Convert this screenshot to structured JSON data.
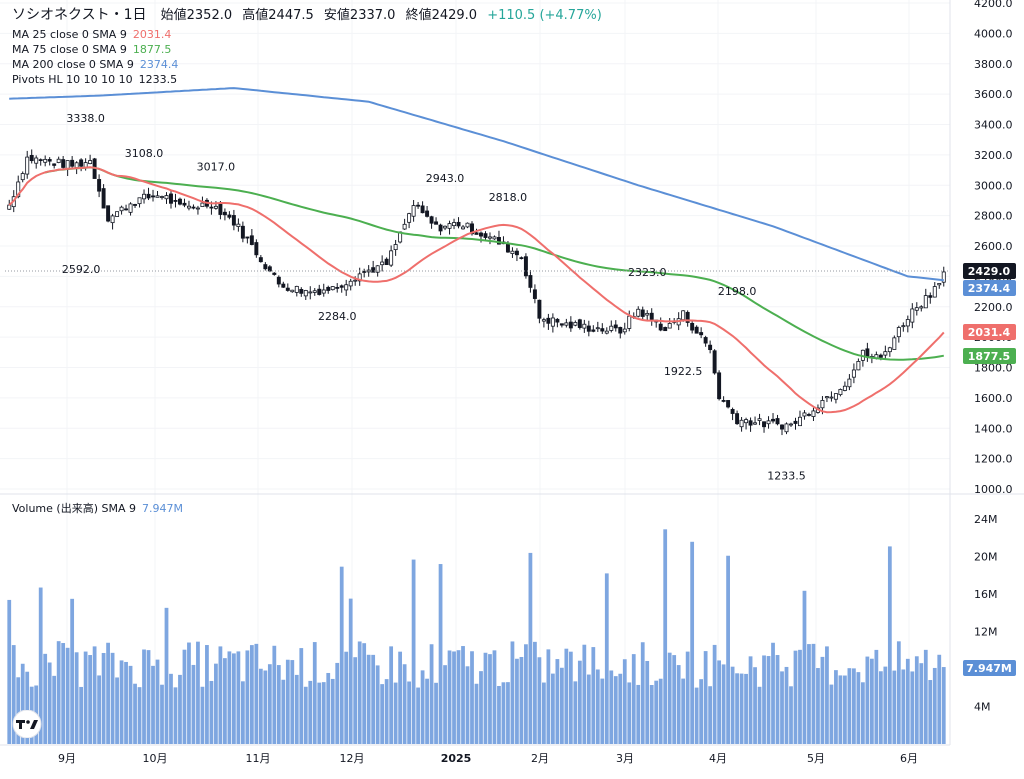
{
  "header": {
    "symbol": "ソシオネクスト・1日",
    "open": "始値2352.0",
    "high": "高値2447.5",
    "low": "安値2337.0",
    "close": "終値2429.0",
    "change": "+110.5 (+4.77%)"
  },
  "indicators": [
    {
      "label": "MA 25 close 0 SMA 9",
      "value": "2031.4",
      "color": "#ef6f6c"
    },
    {
      "label": "MA 75 close 0 SMA 9",
      "value": "1877.5",
      "color": "#4caf50"
    },
    {
      "label": "MA 200 close 0 SMA 9",
      "value": "2374.4",
      "color": "#5b8fd6"
    },
    {
      "label": "Pivots HL 10 10 10 10",
      "value": "1233.5",
      "color": "#131722"
    }
  ],
  "volume_legend": {
    "label": "Volume (出来高) SMA 9",
    "value": "7.947M",
    "color": "#5b8fd6"
  },
  "price_axis": {
    "ticks": [
      "4200.0",
      "4000.0",
      "3800.0",
      "3600.0",
      "3400.0",
      "3200.0",
      "3000.0",
      "2800.0",
      "2600.0",
      "2400.0",
      "2200.0",
      "2000.0",
      "1800.0",
      "1600.0",
      "1400.0",
      "1200.0",
      "1000.0"
    ]
  },
  "volume_axis": {
    "ticks": [
      "24M",
      "20M",
      "16M",
      "12M",
      "4M"
    ]
  },
  "time_axis": {
    "labels": [
      "9月",
      "10月",
      "11月",
      "12月",
      "2025",
      "2月",
      "3月",
      "4月",
      "5月",
      "6月"
    ]
  },
  "price_tags": [
    {
      "text": "2429.0",
      "color": "#131722"
    },
    {
      "text": "2374.4",
      "color": "#5b8fd6"
    },
    {
      "text": "2031.4",
      "color": "#ef6f6c"
    },
    {
      "text": "1877.5",
      "color": "#4caf50"
    },
    {
      "text": "7.947M",
      "color": "#5b8fd6"
    }
  ],
  "chart_data": {
    "type": "candlestick",
    "y_range": [
      1000,
      4200
    ],
    "volume_range_millions": [
      0,
      26
    ],
    "pivots": [
      {
        "label": "3338.0",
        "type": "high",
        "value": 3338.0
      },
      {
        "label": "2592.0",
        "type": "low",
        "value": 2592.0
      },
      {
        "label": "3108.0",
        "type": "high",
        "value": 3108.0
      },
      {
        "label": "3017.0",
        "type": "high",
        "value": 3017.0
      },
      {
        "label": "2284.0",
        "type": "low",
        "value": 2284.0
      },
      {
        "label": "2943.0",
        "type": "high",
        "value": 2943.0
      },
      {
        "label": "2818.0",
        "type": "high",
        "value": 2818.0
      },
      {
        "label": "2323.0",
        "type": "high",
        "value": 2323.0
      },
      {
        "label": "2198.0",
        "type": "high",
        "value": 2198.0
      },
      {
        "label": "1922.5",
        "type": "low",
        "value": 1922.5
      },
      {
        "label": "1233.5",
        "type": "low",
        "value": 1233.5
      }
    ],
    "series": [
      {
        "name": "MA 25 close 0 SMA 9",
        "last": 2031.4
      },
      {
        "name": "MA 75 close 0 SMA 9",
        "last": 1877.5
      },
      {
        "name": "MA 200 close 0 SMA 9",
        "last": 2374.4
      }
    ],
    "last_close": 2429.0,
    "volume_sma_last_millions": 7.947
  }
}
